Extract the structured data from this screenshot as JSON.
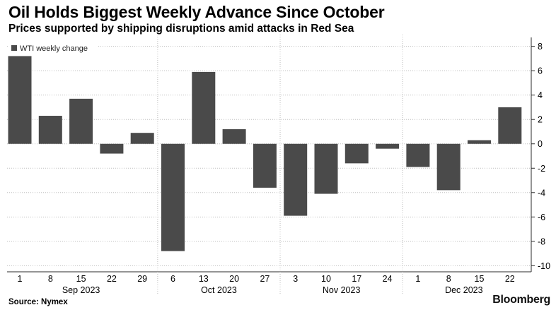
{
  "header": {
    "title": "Oil Holds Biggest Weekly Advance Since October",
    "subtitle": "Prices supported by shipping disruptions amid attacks in Red Sea"
  },
  "footer": {
    "source": "Source: Nymex",
    "brand": "Bloomberg"
  },
  "colors": {
    "bar": "#4a4a4a",
    "grid": "#bfbfbf",
    "axis": "#2b2b2b"
  },
  "chart_data": {
    "type": "bar",
    "title": "Oil Holds Biggest Weekly Advance Since October",
    "subtitle": "Prices supported by shipping disruptions amid attacks in Red Sea",
    "legend": {
      "entries": [
        "WTI weekly change"
      ],
      "placement": "top-left"
    },
    "categories": [
      "1",
      "8",
      "15",
      "22",
      "29",
      "6",
      "13",
      "20",
      "27",
      "3",
      "10",
      "17",
      "24",
      "1",
      "8",
      "15",
      "22"
    ],
    "month_groups": [
      {
        "label": "Sep 2023",
        "from": 0,
        "to": 4
      },
      {
        "label": "Oct 2023",
        "from": 5,
        "to": 8
      },
      {
        "label": "Nov 2023",
        "from": 9,
        "to": 12
      },
      {
        "label": "Dec 2023",
        "from": 13,
        "to": 16
      }
    ],
    "series": [
      {
        "name": "WTI weekly change",
        "values": [
          7.2,
          2.3,
          3.7,
          -0.8,
          0.9,
          -8.8,
          5.9,
          1.2,
          -3.6,
          -5.9,
          -4.1,
          -1.6,
          -0.4,
          -1.9,
          -3.8,
          0.3,
          3.0
        ]
      }
    ],
    "y_axis": {
      "position": "right",
      "ylim": [
        -10.5,
        8.5
      ],
      "ticks": [
        -10,
        -8,
        -6,
        -4,
        -2,
        0,
        2,
        4,
        6,
        8
      ],
      "tick_labels": [
        "-10",
        "-8",
        "-6",
        "-4",
        "-2",
        "0",
        "2",
        "4",
        "6",
        "8"
      ]
    },
    "grid": true,
    "xlabel": "",
    "ylabel": ""
  }
}
